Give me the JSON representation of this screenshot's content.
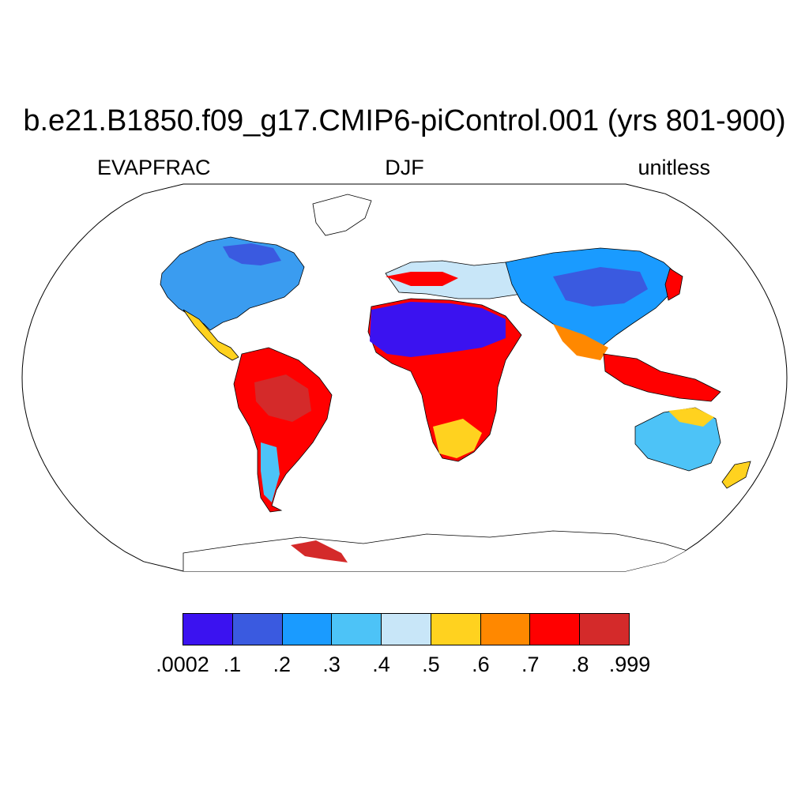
{
  "figure": {
    "title": "b.e21.B1850.f09_g17.CMIP6-piControl.001 (yrs 801-900)",
    "left_label": "EVAPFRAC",
    "center_label": "DJF",
    "right_label": "unitless"
  },
  "map": {
    "projection": "Robinson",
    "background": "#ffffff",
    "coastline_color": "#000000"
  },
  "colorbar": {
    "colors": [
      "#3b12f0",
      "#3a5ae0",
      "#1a9bff",
      "#4dc3f7",
      "#c8e6f8",
      "#ffd21f",
      "#ff8800",
      "#ff0000",
      "#d42a2a"
    ],
    "tick_labels": [
      ".0002",
      ".1",
      ".2",
      ".3",
      ".4",
      ".5",
      ".6",
      ".7",
      ".8",
      ".999"
    ]
  }
}
